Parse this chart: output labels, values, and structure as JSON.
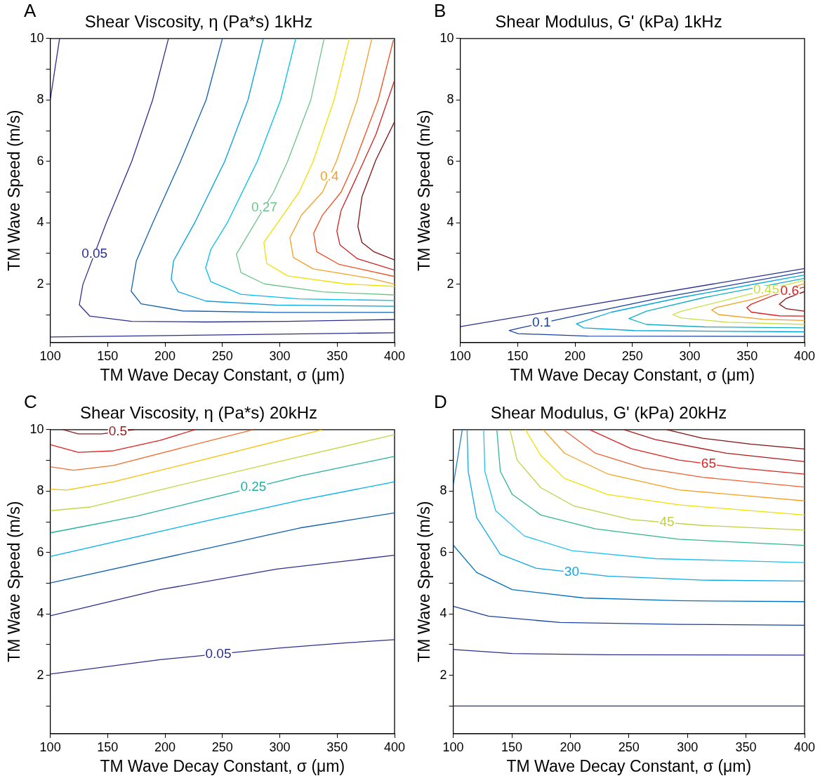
{
  "chart_data": [
    {
      "type": "line",
      "title": "Shear Viscosity, η (Pa*s) 1kHz",
      "xlabel": "TM Wave Decay Constant, σ (μm)",
      "ylabel": "TM Wave Speed (m/s)",
      "annotations": [
        "A"
      ],
      "xlim": [
        100,
        400
      ],
      "xticks": [
        100,
        150,
        200,
        250,
        300,
        350,
        400
      ],
      "ylim": [
        0.1,
        10
      ],
      "yticks": [
        {
          "value": 1,
          "label": null
        },
        2,
        {
          "value": 3,
          "label": null
        },
        4,
        {
          "value": 5,
          "label": null
        },
        6,
        {
          "value": 7,
          "label": null
        },
        8,
        {
          "value": 9,
          "label": null
        },
        10
      ],
      "grid": false,
      "legend": false,
      "series": [
        {
          "color": "#2b2f8f",
          "x": [
            108.1,
            104,
            100
          ],
          "values": [
            10,
            9,
            8
          ]
        },
        {
          "color": "#2b2f8f",
          "x": [
            100,
            250,
            400
          ],
          "values": [
            0.28,
            0.35,
            0.42
          ]
        },
        {
          "name": "0.05",
          "color": "#2b2f8f",
          "x": [
            203.0,
            189.2,
            171.0,
            148.7,
            128.4,
            125.3,
            134.5,
            171.0,
            235.8,
            306.8,
            400
          ],
          "values": [
            10,
            8,
            6,
            3.99,
            1.99,
            1.33,
            0.96,
            0.79,
            0.77,
            0.79,
            0.85
          ]
        },
        {
          "color": "#1060b0",
          "x": [
            250.0,
            235.8,
            213.5,
            189.2,
            175.0,
            170.5,
            179.1,
            215.5,
            296.6,
            400
          ],
          "values": [
            10,
            8,
            6,
            3.99,
            2.76,
            1.77,
            1.36,
            1.13,
            1.08,
            1.08
          ]
        },
        {
          "color": "#00a0e0",
          "x": [
            285.5,
            272.3,
            252.0,
            225.7,
            207.4,
            205.4,
            211.5,
            235.8,
            296.6,
            400
          ],
          "values": [
            10,
            8,
            6,
            3.99,
            2.76,
            2.16,
            1.75,
            1.45,
            1.32,
            1.28
          ]
        },
        {
          "color": "#00c0f0",
          "x": [
            313.9,
            300.7,
            280.4,
            254.1,
            239.9,
            235.4,
            239.9,
            266.2,
            316.9,
            400
          ],
          "values": [
            10,
            8,
            6,
            3.99,
            3.13,
            2.53,
            2.08,
            1.67,
            1.52,
            1.47
          ]
        },
        {
          "name": "0.27",
          "color": "#6cc48a",
          "x": [
            338.6,
            327.0,
            306.8,
            294.6,
            278.4,
            262.2,
            266.2,
            286.5,
            337.2,
            400
          ],
          "values": [
            10,
            8,
            6,
            5,
            3.99,
            2.98,
            2.38,
            2.01,
            1.75,
            1.65
          ]
        },
        {
          "color": "#f0e000",
          "x": [
            360.5,
            347.3,
            329.1,
            316.9,
            298.7,
            286.1,
            288.5,
            306.8,
            357.4,
            400
          ],
          "values": [
            10,
            8,
            6,
            5,
            4.03,
            3.36,
            2.68,
            2.27,
            2.01,
            1.93
          ]
        },
        {
          "name": "0.4",
          "color": "#f8a020",
          "x": [
            380.2,
            367.6,
            349.3,
            337.2,
            318.9,
            308.8,
            311.8,
            329.1,
            377.7,
            400
          ],
          "values": [
            10,
            8,
            6,
            5,
            4.25,
            3.51,
            2.87,
            2.5,
            2.2,
            2.0
          ]
        },
        {
          "color": "#f05020",
          "x": [
            399,
            385.8,
            365.6,
            353.4,
            337.2,
            329.5,
            332.1,
            351.4,
            400
          ],
          "values": [
            9.95,
            8,
            6,
            5,
            4.25,
            3.66,
            3.06,
            2.65,
            2.25
          ]
        },
        {
          "color": "#d02020",
          "x": [
            400,
            383.8,
            365.6,
            353.4,
            349.7,
            352.4,
            367.6,
            400
          ],
          "values": [
            8.64,
            6.88,
            5.38,
            4.4,
            3.73,
            3.28,
            2.83,
            2.46
          ]
        },
        {
          "color": "#801010",
          "x": [
            400,
            383.8,
            371.6,
            368.0,
            371.6,
            381.8,
            400
          ],
          "values": [
            7.29,
            6.05,
            4.85,
            3.88,
            3.36,
            3.06,
            2.79
          ]
        }
      ]
    },
    {
      "type": "line",
      "title": "Shear Modulus, G' (kPa) 1kHz",
      "xlabel": "TM Wave Decay Constant, σ (μm)",
      "ylabel": "TM Wave Speed (m/s)",
      "annotations": [
        "B"
      ],
      "xlim": [
        100,
        400
      ],
      "xticks": [
        100,
        150,
        200,
        250,
        300,
        350,
        400
      ],
      "ylim": [
        0.1,
        10
      ],
      "yticks": [
        {
          "value": 1,
          "label": null
        },
        2,
        {
          "value": 3,
          "label": null
        },
        4,
        {
          "value": 5,
          "label": null
        },
        6,
        {
          "value": 7,
          "label": null
        },
        8,
        {
          "value": 9,
          "label": null
        },
        10
      ],
      "grid": false,
      "legend": false,
      "series": [
        {
          "color": "#2b2f8f",
          "x": [
            100,
            400
          ],
          "values": [
            0.62,
            2.51
          ]
        },
        {
          "name": "0.1",
          "color": "#1840a0",
          "x": [
            400,
            272.4,
            191.1,
            150.4,
            142.7,
            150.4,
            211.4,
            400
          ],
          "values": [
            2.4,
            1.54,
            0.9,
            0.56,
            0.49,
            0.39,
            0.31,
            0.3
          ]
        },
        {
          "color": "#00a8e0",
          "x": [
            400,
            292.7,
            231.7,
            207.3,
            201.2,
            207.3,
            252.0,
            400
          ],
          "values": [
            2.3,
            1.57,
            1.09,
            0.79,
            0.71,
            0.58,
            0.49,
            0.45
          ]
        },
        {
          "color": "#10b0c0",
          "x": [
            400,
            313.0,
            262.2,
            247.0,
            262.2,
            313.0,
            400
          ],
          "values": [
            2.19,
            1.57,
            1.12,
            0.88,
            0.69,
            0.61,
            0.58
          ]
        },
        {
          "name": "0.45",
          "color": "#c8e040",
          "x": [
            400,
            333.3,
            292.7,
            285.2,
            292.7,
            333.3,
            400
          ],
          "values": [
            2.13,
            1.5,
            1.12,
            1.01,
            0.9,
            0.76,
            0.69
          ]
        },
        {
          "color": "#f0a020",
          "x": [
            400,
            353.7,
            323.2,
            319.1,
            325.2,
            363.8,
            400
          ],
          "values": [
            2.02,
            1.5,
            1.24,
            1.16,
            1.01,
            0.86,
            0.82
          ]
        },
        {
          "name": "0.6",
          "color": "#e02020",
          "x": [
            400,
            374.0,
            353.7,
            349.6,
            353.7,
            378.0,
            400
          ],
          "values": [
            1.91,
            1.65,
            1.35,
            1.24,
            1.09,
            0.97,
            0.96
          ]
        },
        {
          "color": "#901010",
          "x": [
            400,
            384.1,
            378.0,
            384.1,
            400
          ],
          "values": [
            1.76,
            1.54,
            1.35,
            1.2,
            1.12
          ]
        }
      ]
    },
    {
      "type": "line",
      "title": "Shear Viscosity, η (Pa*s) 20kHz",
      "xlabel": "TM Wave Decay Constant, σ (μm)",
      "ylabel": "TM Wave Speed (m/s)",
      "annotations": [
        "C"
      ],
      "xlim": [
        100,
        400
      ],
      "xticks": [
        100,
        150,
        200,
        250,
        300,
        350,
        400
      ],
      "ylim": [
        0.1,
        10
      ],
      "yticks": [
        {
          "value": 1,
          "label": null
        },
        2,
        {
          "value": 3,
          "label": null
        },
        4,
        {
          "value": 5,
          "label": null
        },
        6,
        {
          "value": 7,
          "label": null
        },
        8,
        {
          "value": 9,
          "label": null
        },
        10
      ],
      "grid": false,
      "legend": false,
      "series": [
        {
          "name": "0.05",
          "color": "#2b2f8f",
          "x": [
            100,
            195.6,
            297.3,
            338.0,
            358.4,
            400
          ],
          "values": [
            2.04,
            2.51,
            2.88,
            3.0,
            3.06,
            3.16
          ]
        },
        {
          "color": "#2b2f8f",
          "x": [
            100,
            195.6,
            297.3,
            400
          ],
          "values": [
            3.94,
            4.79,
            5.46,
            5.91
          ]
        },
        {
          "color": "#1060b0",
          "x": [
            100,
            236.3,
            317.6,
            400
          ],
          "values": [
            5.01,
            6.13,
            6.8,
            7.29
          ]
        },
        {
          "color": "#00b0f0",
          "x": [
            100,
            236.3,
            317.6,
            400
          ],
          "values": [
            5.87,
            7.03,
            7.7,
            8.3
          ]
        },
        {
          "name": "0.25",
          "color": "#20b0a0",
          "x": [
            100,
            175.2,
            236.3,
            317.6,
            400
          ],
          "values": [
            6.64,
            7.18,
            7.74,
            8.49,
            9.13
          ]
        },
        {
          "color": "#c0d840",
          "x": [
            100,
            134.6,
            195.6,
            297.3,
            400
          ],
          "values": [
            7.36,
            7.48,
            8.04,
            8.94,
            9.84
          ]
        },
        {
          "color": "#f8c000",
          "x": [
            100,
            114.2,
            154.9,
            236.3,
            336.9
          ],
          "values": [
            8.06,
            8.03,
            8.3,
            9.05,
            10
          ]
        },
        {
          "color": "#f07030",
          "x": [
            100,
            120.3,
            154.9,
            215.9,
            276.9
          ],
          "values": [
            8.79,
            8.68,
            8.83,
            9.42,
            10
          ]
        },
        {
          "color": "#e02020",
          "x": [
            100,
            124.4,
            154.9,
            195.6,
            226.1
          ],
          "values": [
            9.51,
            9.26,
            9.31,
            9.65,
            10
          ]
        },
        {
          "name": "0.5",
          "color": "#901a1a",
          "x": [
            111.2,
            124.4,
            144.7,
            173.2
          ],
          "values": [
            10,
            9.86,
            9.86,
            10
          ]
        }
      ]
    },
    {
      "type": "line",
      "title": "Shear Modulus, G' (kPa) 20kHz",
      "xlabel": "TM Wave Decay Constant, σ (μm)",
      "ylabel": "TM Wave Speed (m/s)",
      "annotations": [
        "D"
      ],
      "xlim": [
        100,
        400
      ],
      "xticks": [
        100,
        150,
        200,
        250,
        300,
        350,
        400
      ],
      "ylim": [
        0.1,
        10
      ],
      "yticks": [
        {
          "value": 1,
          "label": null
        },
        2,
        {
          "value": 3,
          "label": null
        },
        4,
        {
          "value": 5,
          "label": null
        },
        6,
        {
          "value": 7,
          "label": null
        },
        8,
        {
          "value": 9,
          "label": null
        }
      ],
      "grid": false,
      "legend": false,
      "series": [
        {
          "color": "#2b2f8f",
          "x": [
            100,
            400
          ],
          "values": [
            1.0,
            1.0
          ]
        },
        {
          "color": "#2b2f8f",
          "x": [
            100,
            150.4,
            231.7,
            400
          ],
          "values": [
            2.84,
            2.71,
            2.67,
            2.66
          ]
        },
        {
          "color": "#1840a0",
          "x": [
            100,
            130.1,
            191.1,
            292.7,
            400
          ],
          "values": [
            4.25,
            3.93,
            3.72,
            3.66,
            3.63
          ]
        },
        {
          "color": "#0070c0",
          "x": [
            100,
            119.9,
            150.4,
            211.4,
            292.7,
            400
          ],
          "values": [
            6.24,
            5.35,
            4.79,
            4.52,
            4.43,
            4.4
          ]
        },
        {
          "color": "#2080c0",
          "x": [
            107.7,
            100
          ],
          "values": [
            10,
            8.19
          ]
        },
        {
          "name": "30",
          "color": "#10a8e8",
          "x": [
            111.8,
            112.8,
            119.9,
            140.2,
            170.7,
            231.7,
            313.0,
            400
          ],
          "values": [
            10,
            8.64,
            7.14,
            5.94,
            5.49,
            5.23,
            5.1,
            5.07
          ]
        },
        {
          "color": "#20c0f0",
          "x": [
            126.0,
            127.0,
            136.2,
            160.6,
            201.2,
            272.4,
            400
          ],
          "values": [
            10,
            8.64,
            7.36,
            6.54,
            6.06,
            5.8,
            5.67
          ]
        },
        {
          "color": "#30b890",
          "x": [
            137.2,
            140.2,
            150.4,
            174.8,
            221.5,
            292.7,
            400
          ],
          "values": [
            10,
            8.64,
            7.89,
            7.22,
            6.77,
            6.43,
            6.23
          ]
        },
        {
          "name": "45",
          "color": "#c0d040",
          "x": [
            148.4,
            154.5,
            174.8,
            203.3,
            252.0,
            313.0,
            400
          ],
          "values": [
            10,
            9.01,
            8.11,
            7.51,
            7.07,
            6.88,
            6.73
          ]
        },
        {
          "color": "#f0e000",
          "x": [
            161.6,
            174.8,
            195.1,
            231.7,
            292.7,
            400
          ],
          "values": [
            10,
            9.16,
            8.41,
            7.89,
            7.55,
            7.22
          ]
        },
        {
          "color": "#f8a020",
          "x": [
            176.8,
            195.1,
            231.7,
            292.7,
            400
          ],
          "values": [
            10,
            9.23,
            8.56,
            8.04,
            7.68
          ]
        },
        {
          "color": "#f06030",
          "x": [
            194.1,
            221.5,
            262.2,
            313.0,
            400
          ],
          "values": [
            10,
            9.23,
            8.75,
            8.45,
            8.13
          ]
        },
        {
          "name": "65",
          "color": "#e02020",
          "x": [
            216.5,
            252.0,
            292.7,
            343.5,
            400
          ],
          "values": [
            10,
            9.38,
            9.01,
            8.75,
            8.55
          ]
        },
        {
          "color": "#b01818",
          "x": [
            245.9,
            272.4,
            333.3,
            400
          ],
          "values": [
            10,
            9.68,
            9.23,
            8.96
          ]
        },
        {
          "color": "#801010",
          "x": [
            282.5,
            313.0,
            353.7,
            400
          ],
          "values": [
            10,
            9.72,
            9.53,
            9.37
          ]
        }
      ]
    }
  ]
}
